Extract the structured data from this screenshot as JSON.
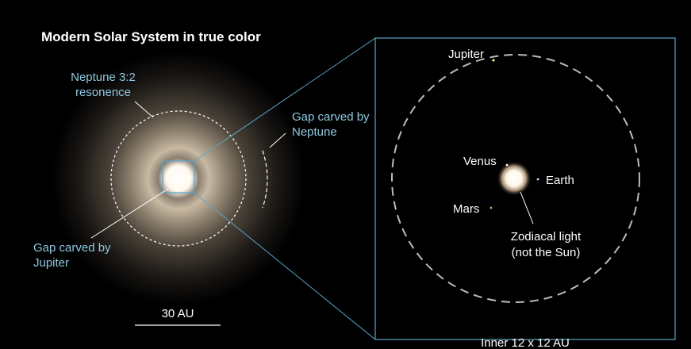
{
  "title": "Modern Solar System in true color",
  "labels": {
    "neptune_resonance": [
      "Neptune 3:2",
      "resonence"
    ],
    "gap_neptune": [
      "Gap carved by",
      "Neptune"
    ],
    "gap_jupiter": [
      "Gap carved by",
      "Jupiter"
    ]
  },
  "scale_bar": "30 AU",
  "inset": {
    "caption": "Inner 12 x 12 AU",
    "jupiter": "Jupiter",
    "venus": "Venus",
    "earth": "Earth",
    "mars": "Mars",
    "zodiacal_light": [
      "Zodiacal light",
      "(not the Sun)"
    ]
  }
}
